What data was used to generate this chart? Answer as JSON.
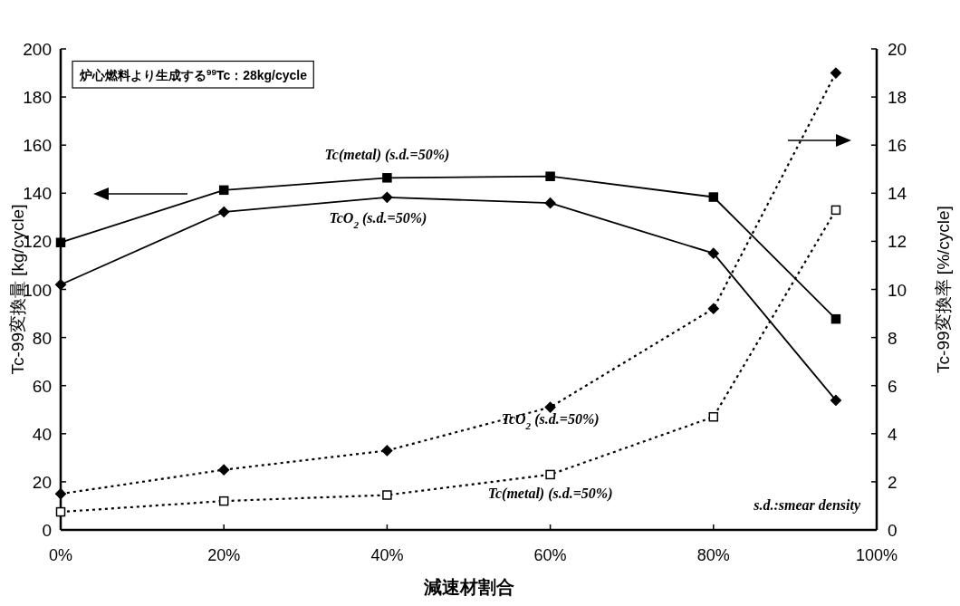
{
  "chart_data": {
    "type": "line",
    "xlabel": "減速材割合",
    "ylabel": "Tc-99変換量 [kg/cycle]",
    "y2label": "Tc-99変換率 [%/cycle]",
    "x": [
      0,
      20,
      40,
      60,
      80,
      95
    ],
    "xlim": [
      0,
      100
    ],
    "xticks": [
      {
        "value": 0,
        "label": "0%"
      },
      {
        "value": 20,
        "label": "20%"
      },
      {
        "value": 40,
        "label": "40%"
      },
      {
        "value": 60,
        "label": "60%"
      },
      {
        "value": 80,
        "label": "80%"
      },
      {
        "value": 100,
        "label": "100%"
      }
    ],
    "ylim": [
      0,
      200
    ],
    "yticks": [
      0,
      20,
      40,
      60,
      80,
      100,
      120,
      140,
      160,
      180,
      200
    ],
    "y2lim": [
      0,
      20
    ],
    "y2ticks": [
      0,
      2,
      4,
      6,
      8,
      10,
      12,
      14,
      16,
      18,
      20
    ],
    "grid": false,
    "series": [
      {
        "name": "Tc(metal) (s.d.=50%)",
        "color": "#000000",
        "marker": "square",
        "line_style": "solid",
        "values": [
          119.5,
          141.3,
          146.4,
          147,
          138.4,
          87.7
        ]
      },
      {
        "name": "TcO$_{2}$ (s.d.=50%)",
        "color": "#000000",
        "marker": "diamond",
        "line_style": "solid",
        "values": [
          102,
          132.2,
          138.3,
          135.9,
          115,
          53.9
        ]
      },
      {
        "name": "TcO$_{2}$ (s.d.=50%)",
        "color": "#000000",
        "marker": "diamond",
        "line_style": "dotted",
        "axis": "y2",
        "values": [
          1.5,
          2.5,
          3.3,
          5.1,
          9.2,
          19.0
        ]
      },
      {
        "name": "Tc(metal) (s.d.=50%)",
        "color": "#000000",
        "marker": "square",
        "line_style": "dotted",
        "axis": "y2",
        "values": [
          0.75,
          1.2,
          1.45,
          2.3,
          4.7,
          13.3
        ]
      }
    ],
    "annotations": [
      "炉心燃料より生成する$^{99}$Tc：28kg/cycle",
      "s.d.:smear density"
    ]
  }
}
